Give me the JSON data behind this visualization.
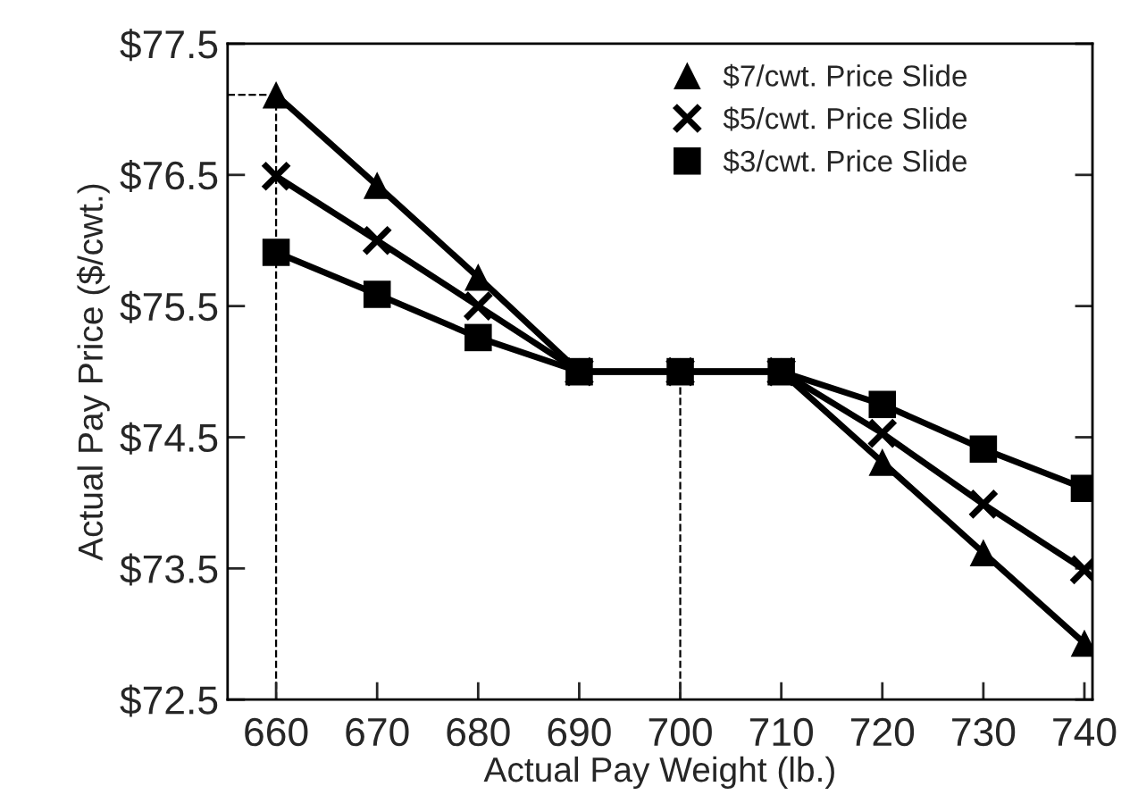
{
  "chart_data": {
    "type": "line",
    "xlabel": "Actual Pay Weight (lb.)",
    "ylabel": "Actual Pay Price ($/cwt.)",
    "x": [
      660,
      670,
      680,
      690,
      700,
      710,
      720,
      730,
      740
    ],
    "series": [
      {
        "name": "$7/cwt. Price Slide",
        "color": "#000000",
        "marker": "triangle",
        "values": [
          77.11,
          76.42,
          75.72,
          75.0,
          75.0,
          75.0,
          74.31,
          73.62,
          72.93
        ]
      },
      {
        "name": "$5/cwt. Price Slide",
        "color": "#000000",
        "marker": "cross",
        "values": [
          76.49,
          76.0,
          75.5,
          75.0,
          75.0,
          75.0,
          74.53,
          73.99,
          73.49
        ]
      },
      {
        "name": "$3/cwt. Price Slide",
        "color": "#000000",
        "marker": "square",
        "values": [
          75.91,
          75.59,
          75.26,
          75.0,
          75.0,
          75.0,
          74.75,
          74.41,
          74.11
        ]
      },
      {
        "type": "line",
        "color": "#000000",
        "marker": "none",
        "line_style": "dashed",
        "x": [
          655.2,
          660
        ],
        "values": [
          77.11,
          77.11
        ]
      }
    ],
    "xlim": [
      655.2,
      740.8
    ],
    "xticks": [
      660,
      670,
      680,
      690,
      700,
      710,
      720,
      730,
      740
    ],
    "ylim": [
      72.5,
      77.5
    ],
    "yticks": [
      {
        "value": 72.5,
        "label": "$72.5"
      },
      {
        "value": 73.5,
        "label": "$73.5"
      },
      {
        "value": 74.5,
        "label": "$74.5"
      },
      {
        "value": 75.5,
        "label": "$75.5"
      },
      {
        "value": 76.5,
        "label": "$76.5"
      },
      {
        "value": 77.5,
        "label": "$77.5"
      }
    ],
    "ref_lines": [
      {
        "axis": "x",
        "value": 660,
        "line_style": "dashed",
        "color": "#000000"
      },
      {
        "axis": "x",
        "value": 700,
        "line_style": "dashed",
        "color": "#000000"
      }
    ],
    "legend": "top right",
    "grid": false,
    "line_style": "solid"
  }
}
